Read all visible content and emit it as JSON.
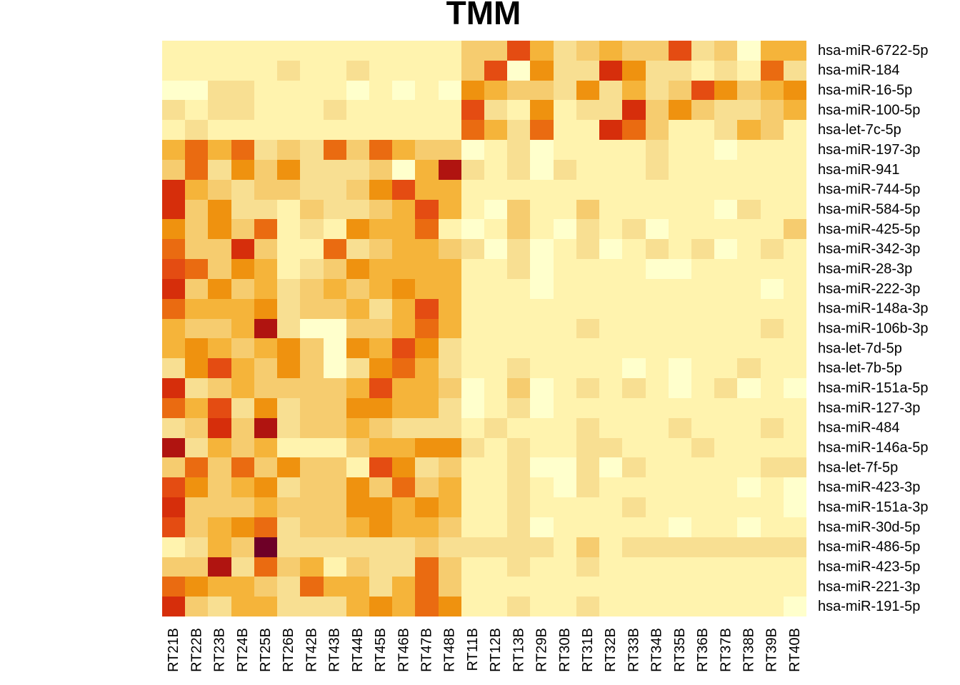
{
  "chart_data": {
    "type": "heatmap",
    "title": "TMM",
    "xlabel": "",
    "ylabel": "",
    "columns": [
      "RT21B",
      "RT22B",
      "RT23B",
      "RT24B",
      "RT25B",
      "RT26B",
      "RT42B",
      "RT43B",
      "RT44B",
      "RT45B",
      "RT46B",
      "RT47B",
      "RT48B",
      "RT11B",
      "RT12B",
      "RT13B",
      "RT29B",
      "RT30B",
      "RT31B",
      "RT32B",
      "RT33B",
      "RT34B",
      "RT35B",
      "RT36B",
      "RT37B",
      "RT38B",
      "RT39B",
      "RT40B"
    ],
    "rows": [
      "hsa-miR-6722-5p",
      "hsa-miR-184",
      "hsa-miR-16-5p",
      "hsa-miR-100-5p",
      "hsa-let-7c-5p",
      "hsa-miR-197-3p",
      "hsa-miR-941",
      "hsa-miR-744-5p",
      "hsa-miR-584-5p",
      "hsa-miR-425-5p",
      "hsa-miR-342-3p",
      "hsa-miR-28-3p",
      "hsa-miR-222-3p",
      "hsa-miR-148a-3p",
      "hsa-miR-106b-3p",
      "hsa-let-7d-5p",
      "hsa-let-7b-5p",
      "hsa-miR-151a-5p",
      "hsa-miR-127-3p",
      "hsa-miR-484",
      "hsa-miR-146a-5p",
      "hsa-let-7f-5p",
      "hsa-miR-423-3p",
      "hsa-miR-151a-3p",
      "hsa-miR-30d-5p",
      "hsa-miR-486-5p",
      "hsa-miR-423-5p",
      "hsa-miR-221-3p",
      "hsa-miR-191-5p"
    ],
    "color_scale": [
      "#FFFFCC",
      "#FFF3AE",
      "#F8DF92",
      "#F6CC6F",
      "#F5B43A",
      "#EF920F",
      "#EA6B11",
      "#E44C12",
      "#D62E0B",
      "#B01410",
      "#6E0027"
    ],
    "color_scale_note": "level 0 = lightest, level 10 = darkest",
    "values": [
      [
        1,
        1,
        1,
        1,
        1,
        1,
        1,
        1,
        1,
        1,
        1,
        1,
        1,
        3,
        3,
        7,
        4,
        2,
        3,
        4,
        3,
        3,
        7,
        2,
        3,
        0,
        4,
        4
      ],
      [
        1,
        1,
        1,
        1,
        1,
        2,
        1,
        1,
        2,
        1,
        1,
        1,
        1,
        3,
        7,
        0,
        5,
        2,
        2,
        8,
        5,
        2,
        2,
        1,
        2,
        1,
        6,
        2
      ],
      [
        0,
        0,
        2,
        2,
        1,
        1,
        1,
        1,
        0,
        1,
        0,
        1,
        0,
        5,
        4,
        3,
        3,
        2,
        5,
        2,
        4,
        2,
        3,
        7,
        5,
        3,
        4,
        5
      ],
      [
        2,
        1,
        2,
        2,
        1,
        1,
        1,
        2,
        1,
        1,
        1,
        1,
        1,
        7,
        2,
        1,
        5,
        1,
        2,
        2,
        8,
        3,
        5,
        3,
        2,
        2,
        3,
        4
      ],
      [
        1,
        2,
        1,
        1,
        1,
        1,
        1,
        1,
        1,
        1,
        1,
        1,
        1,
        6,
        4,
        2,
        6,
        1,
        1,
        8,
        6,
        3,
        1,
        1,
        2,
        4,
        3,
        1
      ],
      [
        4,
        6,
        4,
        6,
        2,
        3,
        2,
        6,
        3,
        6,
        4,
        3,
        3,
        0,
        1,
        2,
        0,
        1,
        1,
        1,
        1,
        2,
        1,
        1,
        0,
        1,
        1,
        1
      ],
      [
        3,
        6,
        2,
        5,
        3,
        5,
        2,
        2,
        2,
        3,
        0,
        4,
        9,
        2,
        1,
        2,
        0,
        2,
        1,
        1,
        1,
        2,
        1,
        1,
        1,
        1,
        1,
        1
      ],
      [
        8,
        4,
        3,
        2,
        3,
        3,
        2,
        2,
        3,
        5,
        7,
        4,
        4,
        1,
        1,
        1,
        1,
        1,
        1,
        1,
        1,
        1,
        1,
        1,
        1,
        1,
        1,
        1
      ],
      [
        8,
        3,
        5,
        2,
        2,
        1,
        3,
        2,
        2,
        3,
        4,
        7,
        4,
        1,
        0,
        3,
        1,
        1,
        3,
        1,
        1,
        1,
        1,
        1,
        0,
        2,
        1,
        1
      ],
      [
        5,
        3,
        5,
        3,
        6,
        1,
        2,
        1,
        5,
        4,
        4,
        6,
        1,
        0,
        1,
        3,
        1,
        0,
        2,
        1,
        2,
        0,
        1,
        1,
        1,
        1,
        1,
        3
      ],
      [
        6,
        3,
        3,
        8,
        3,
        1,
        1,
        6,
        2,
        3,
        4,
        4,
        3,
        2,
        0,
        2,
        0,
        1,
        2,
        0,
        1,
        2,
        1,
        2,
        0,
        1,
        2,
        1
      ],
      [
        7,
        6,
        3,
        5,
        4,
        1,
        2,
        3,
        5,
        4,
        4,
        4,
        4,
        1,
        1,
        2,
        0,
        1,
        1,
        1,
        1,
        0,
        0,
        1,
        1,
        1,
        1,
        1
      ],
      [
        8,
        3,
        5,
        3,
        4,
        2,
        3,
        4,
        3,
        4,
        5,
        4,
        4,
        1,
        1,
        1,
        0,
        1,
        1,
        1,
        1,
        1,
        1,
        1,
        1,
        1,
        0,
        1
      ],
      [
        6,
        4,
        4,
        4,
        5,
        2,
        3,
        3,
        4,
        2,
        4,
        7,
        4,
        1,
        1,
        1,
        1,
        1,
        1,
        1,
        1,
        1,
        1,
        1,
        1,
        1,
        1,
        1
      ],
      [
        4,
        3,
        3,
        4,
        9,
        2,
        0,
        0,
        3,
        3,
        4,
        6,
        4,
        1,
        1,
        1,
        1,
        1,
        2,
        1,
        1,
        1,
        1,
        1,
        1,
        1,
        2,
        1
      ],
      [
        4,
        5,
        4,
        3,
        4,
        5,
        3,
        0,
        5,
        4,
        7,
        5,
        2,
        1,
        1,
        1,
        1,
        1,
        1,
        1,
        1,
        1,
        1,
        1,
        1,
        1,
        1,
        1
      ],
      [
        2,
        5,
        7,
        4,
        3,
        5,
        3,
        0,
        2,
        5,
        6,
        4,
        2,
        1,
        1,
        2,
        1,
        1,
        1,
        1,
        0,
        1,
        0,
        1,
        1,
        2,
        1,
        1
      ],
      [
        8,
        2,
        3,
        4,
        3,
        3,
        3,
        3,
        4,
        7,
        4,
        4,
        3,
        0,
        1,
        3,
        0,
        1,
        2,
        1,
        2,
        1,
        0,
        1,
        2,
        0,
        1,
        0
      ],
      [
        6,
        4,
        7,
        2,
        5,
        2,
        3,
        3,
        5,
        5,
        4,
        4,
        2,
        0,
        1,
        2,
        0,
        1,
        1,
        1,
        1,
        1,
        1,
        1,
        1,
        1,
        1,
        1
      ],
      [
        2,
        3,
        8,
        3,
        9,
        2,
        3,
        3,
        4,
        3,
        2,
        2,
        2,
        1,
        2,
        1,
        1,
        1,
        2,
        1,
        1,
        1,
        2,
        1,
        1,
        1,
        2,
        1
      ],
      [
        9,
        2,
        4,
        3,
        4,
        1,
        1,
        1,
        3,
        4,
        4,
        5,
        5,
        2,
        1,
        2,
        1,
        1,
        2,
        2,
        1,
        1,
        1,
        2,
        1,
        1,
        1,
        1
      ],
      [
        3,
        6,
        3,
        6,
        3,
        5,
        3,
        3,
        1,
        7,
        5,
        2,
        3,
        1,
        1,
        2,
        0,
        0,
        2,
        0,
        2,
        1,
        1,
        1,
        1,
        1,
        2,
        2
      ],
      [
        7,
        5,
        3,
        4,
        5,
        2,
        3,
        3,
        5,
        3,
        6,
        3,
        4,
        1,
        1,
        2,
        1,
        0,
        2,
        1,
        1,
        1,
        1,
        1,
        1,
        0,
        1,
        0
      ],
      [
        8,
        3,
        3,
        3,
        4,
        3,
        3,
        3,
        5,
        5,
        4,
        5,
        4,
        1,
        1,
        2,
        1,
        1,
        1,
        1,
        2,
        1,
        1,
        1,
        1,
        1,
        1,
        0
      ],
      [
        7,
        3,
        4,
        5,
        6,
        2,
        3,
        3,
        4,
        5,
        4,
        4,
        3,
        1,
        1,
        2,
        0,
        1,
        1,
        1,
        1,
        1,
        0,
        1,
        1,
        0,
        1,
        1
      ],
      [
        1,
        2,
        4,
        3,
        10,
        2,
        2,
        2,
        2,
        2,
        2,
        3,
        2,
        2,
        2,
        2,
        2,
        1,
        3,
        1,
        2,
        2,
        2,
        2,
        2,
        2,
        2,
        2
      ],
      [
        3,
        3,
        9,
        2,
        6,
        3,
        4,
        1,
        3,
        2,
        2,
        6,
        3,
        1,
        1,
        2,
        1,
        1,
        2,
        1,
        1,
        1,
        1,
        1,
        1,
        1,
        1,
        1
      ],
      [
        6,
        5,
        4,
        4,
        3,
        2,
        6,
        4,
        4,
        2,
        4,
        6,
        3,
        1,
        1,
        1,
        1,
        1,
        1,
        1,
        1,
        1,
        1,
        1,
        1,
        1,
        1,
        1
      ],
      [
        8,
        3,
        2,
        4,
        4,
        2,
        2,
        2,
        4,
        5,
        4,
        6,
        5,
        1,
        1,
        2,
        1,
        1,
        2,
        1,
        1,
        1,
        1,
        1,
        1,
        1,
        1,
        0
      ]
    ]
  }
}
